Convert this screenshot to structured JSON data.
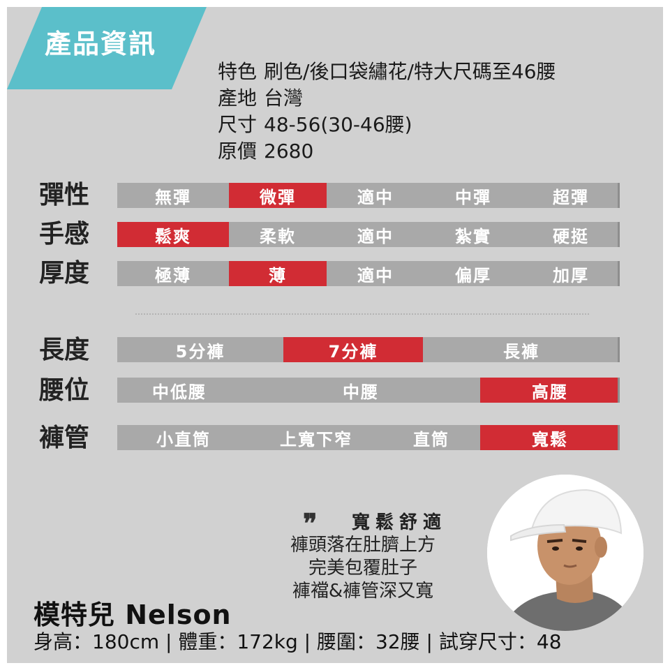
{
  "header": {
    "badge": "產品資訊",
    "badge_color": "#5bbfca"
  },
  "info": [
    {
      "key": "特色",
      "value": "刷色/後口袋繡花/特大尺碼至46腰"
    },
    {
      "key": "產地",
      "value": "台灣"
    },
    {
      "key": "尺寸",
      "value": "48-56(30-46腰)"
    },
    {
      "key": "原價",
      "value": "2680"
    }
  ],
  "colors": {
    "bar": "#a9a9a9",
    "selected": "#d12c34",
    "background": "#d1d1d1"
  },
  "attributes": [
    {
      "label": "彈性",
      "options": [
        "無彈",
        "微彈",
        "適中",
        "中彈",
        "超彈"
      ],
      "selected": "微彈"
    },
    {
      "label": "手感",
      "options": [
        "鬆爽",
        "柔軟",
        "適中",
        "紮實",
        "硬挺"
      ],
      "selected": "鬆爽"
    },
    {
      "label": "厚度",
      "options": [
        "極薄",
        "薄",
        "適中",
        "偏厚",
        "加厚"
      ],
      "selected": "薄"
    },
    {
      "label": "長度",
      "options": [
        "5分褲",
        "7分褲",
        "長褲"
      ],
      "selected": "7分褲"
    },
    {
      "label": "腰位",
      "options": [
        "中低腰",
        "中腰",
        "高腰"
      ],
      "selected": "高腰"
    },
    {
      "label": "褲管",
      "options": [
        "小直筒",
        "上寬下窄",
        "直筒",
        "寬鬆"
      ],
      "selected": "寬鬆"
    }
  ],
  "quote": {
    "mark": "❞",
    "title": "寬鬆舒適",
    "lines": [
      "褲頭落在肚臍上方",
      "完美包覆肚子",
      "褲襠&褲管深又寬"
    ]
  },
  "model": {
    "name": "模特兒 Nelson",
    "stats": "身高：180cm | 體重：172kg | 腰圍：32腰 | 試穿尺寸：48",
    "photo_icon": "model-photo"
  }
}
